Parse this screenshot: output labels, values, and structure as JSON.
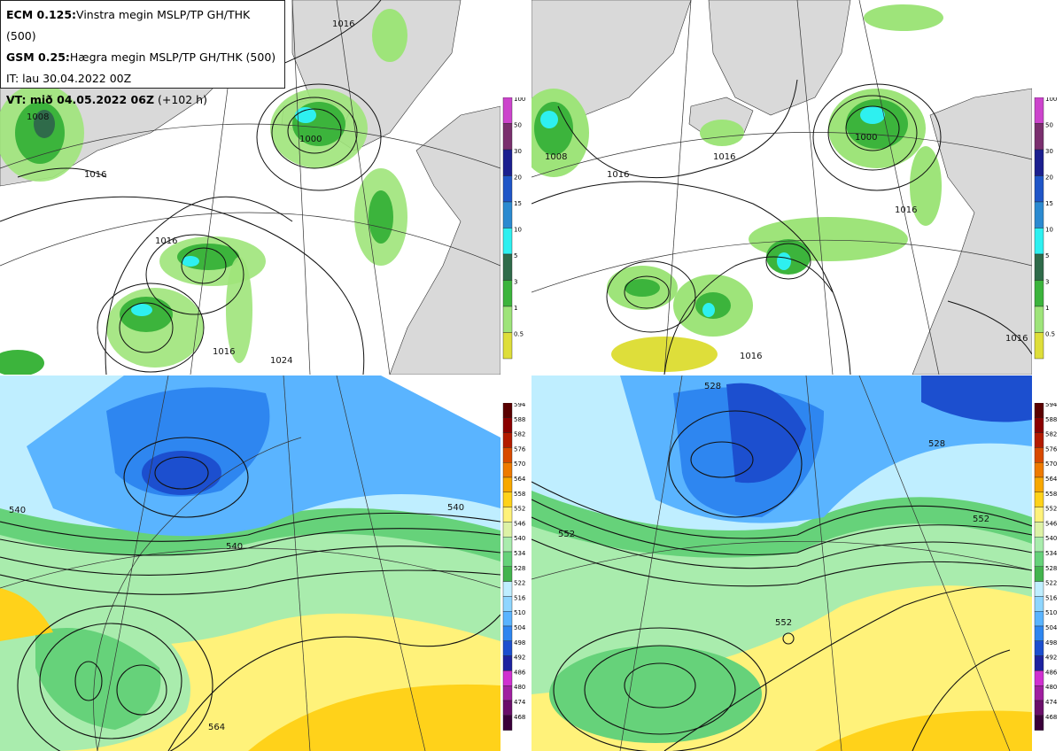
{
  "header": {
    "line1_bold": "ECM 0.125:",
    "line1_rest": "Vinstra megin MSLP/TP GH/THK (500)",
    "line2_bold": "GSM 0.25:",
    "line2_rest": "Hægra megin MSLP/TP GH/THK (500)",
    "line3": "IT: lau 30.04.2022 00Z",
    "line4_bold": "VT: mið 04.05.2022 06Z",
    "line4_rest": " (+102 h)"
  },
  "precip_colorbar": {
    "labels": [
      "100",
      "50",
      "30",
      "20",
      "15",
      "10",
      "5",
      "3",
      "1",
      "0.5"
    ],
    "colors": [
      "#cc44cc",
      "#7a2f6e",
      "#1b1f8f",
      "#1f55c7",
      "#2b8ad0",
      "#2ef0f0",
      "#2f6b4a",
      "#3cb43c",
      "#9ee47a",
      "#dede3a"
    ]
  },
  "thickness_colorbar": {
    "labels": [
      "594",
      "588",
      "582",
      "576",
      "570",
      "564",
      "558",
      "552",
      "546",
      "540",
      "534",
      "528",
      "522",
      "516",
      "510",
      "504",
      "498",
      "492",
      "486",
      "480",
      "474",
      "468"
    ],
    "colors": [
      "#5a0000",
      "#8a0000",
      "#b31b00",
      "#d84a00",
      "#ee7a00",
      "#f8a800",
      "#ffd21a",
      "#fff27a",
      "#ddf2a6",
      "#a9ecad",
      "#66d27a",
      "#43b44e",
      "#bfeeff",
      "#8fd6ff",
      "#5ab4ff",
      "#2e86f0",
      "#1c4fcf",
      "#1e22a0",
      "#d030d0",
      "#a01fa0",
      "#6a0e6a",
      "#3a003a"
    ]
  },
  "panels": {
    "ecm_mslp_labels": [
      "1008",
      "1016",
      "1016",
      "1016",
      "1016",
      "1024",
      "1000"
    ],
    "gsm_mslp_labels": [
      "1008",
      "1016",
      "1016",
      "1000",
      "1016",
      "1016",
      "1016"
    ],
    "ecm_thk_labels": [
      "540",
      "540",
      "540",
      "564"
    ],
    "gsm_thk_labels": [
      "528",
      "528",
      "552",
      "552",
      "552"
    ]
  }
}
